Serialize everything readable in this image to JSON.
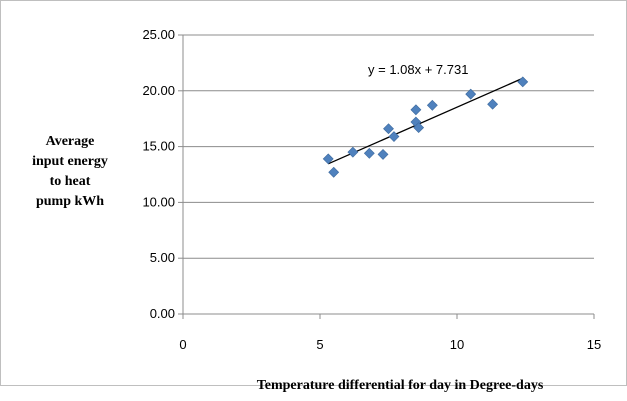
{
  "chart_data": {
    "type": "scatter",
    "xlabel": "Temperature differential for day in Degree-days",
    "ylabel_lines": [
      "Average",
      "input energy",
      "to heat",
      "pump kWh"
    ],
    "xlim": [
      0,
      15
    ],
    "ylim": [
      0,
      25
    ],
    "x_ticks": [
      "0",
      "5",
      "10",
      "15"
    ],
    "y_ticks": [
      "0.00",
      "5.00",
      "10.00",
      "15.00",
      "20.00",
      "25.00"
    ],
    "grid": "horizontal",
    "series": [
      {
        "marker_color": "#4F81BD",
        "points": [
          {
            "x": 5.3,
            "y": 13.9
          },
          {
            "x": 5.5,
            "y": 12.7
          },
          {
            "x": 6.2,
            "y": 14.5
          },
          {
            "x": 6.8,
            "y": 14.4
          },
          {
            "x": 7.3,
            "y": 14.3
          },
          {
            "x": 7.5,
            "y": 16.6
          },
          {
            "x": 7.7,
            "y": 15.9
          },
          {
            "x": 8.5,
            "y": 18.3
          },
          {
            "x": 8.5,
            "y": 17.2
          },
          {
            "x": 8.6,
            "y": 16.7
          },
          {
            "x": 9.1,
            "y": 18.7
          },
          {
            "x": 10.5,
            "y": 19.7
          },
          {
            "x": 11.3,
            "y": 18.8
          },
          {
            "x": 12.4,
            "y": 20.8
          }
        ]
      }
    ],
    "trendline": {
      "slope": 1.08,
      "intercept": 7.731,
      "x_range": [
        5.3,
        12.4
      ],
      "equation_label": "y = 1.08x + 7.731",
      "color": "#000000"
    }
  }
}
